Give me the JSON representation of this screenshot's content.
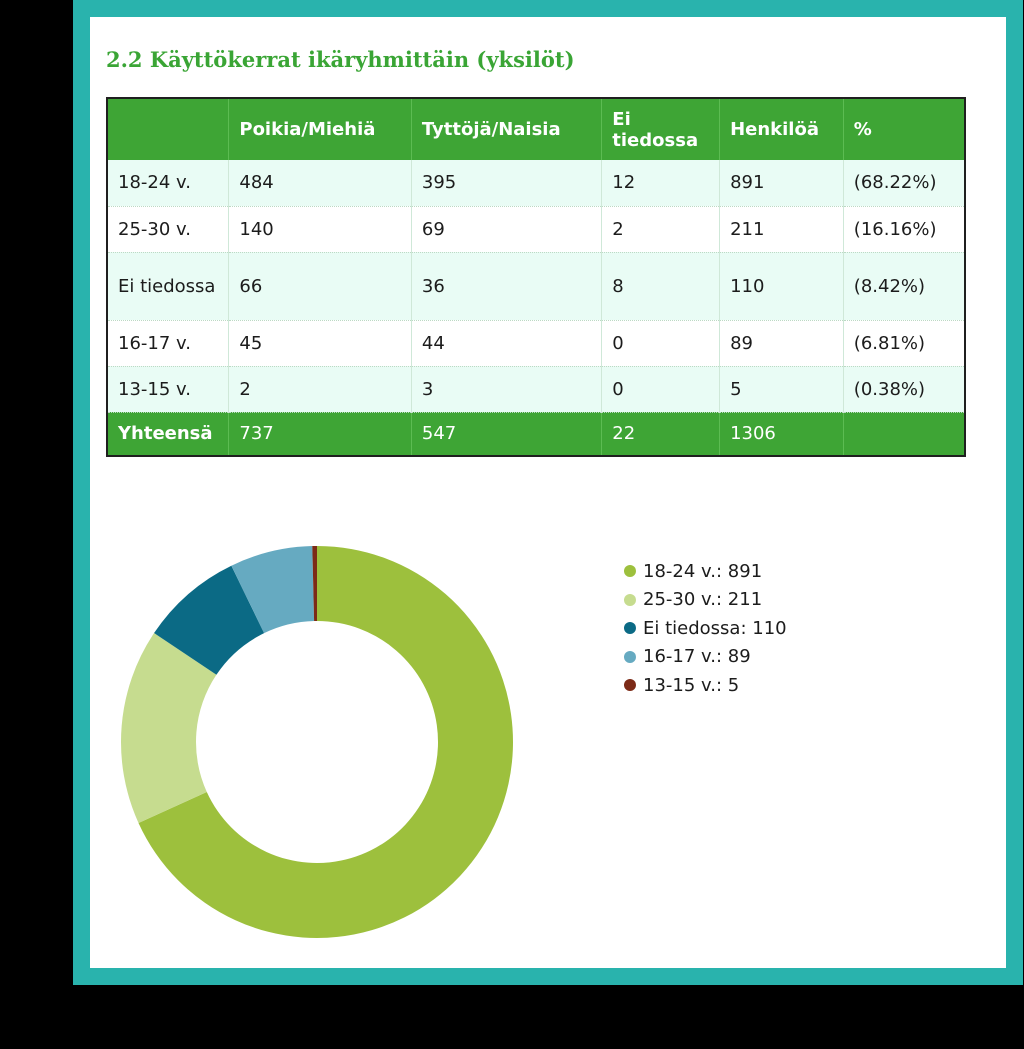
{
  "title": "2.2 Käyttökerrat ikäryhmittäin (yksilöt)",
  "table": {
    "headers": [
      "",
      "Poikia/Miehiä",
      "Tyttöjä/Naisia",
      "Ei tiedossa",
      "Henkilöä",
      "%"
    ],
    "rows": [
      [
        "18-24 v.",
        "484",
        "395",
        "12",
        "891",
        "(68.22%)"
      ],
      [
        "25-30 v.",
        "140",
        "69",
        "2",
        "211",
        "(16.16%)"
      ],
      [
        "Ei tiedossa",
        "66",
        "36",
        "8",
        "110",
        "(8.42%)"
      ],
      [
        "16-17 v.",
        "45",
        "44",
        "0",
        "89",
        "(6.81%)"
      ],
      [
        "13-15 v.",
        "2",
        "3",
        "0",
        "5",
        "(0.38%)"
      ]
    ],
    "total": [
      "Yhteensä",
      "737",
      "547",
      "22",
      "1306",
      ""
    ]
  },
  "legend": [
    "18-24 v.: 891",
    "25-30 v.: 211",
    "Ei tiedossa: 110",
    "16-17 v.: 89",
    "13-15 v.: 5"
  ],
  "chart_data": {
    "type": "pie",
    "style": "donut",
    "categories": [
      "18-24 v.",
      "25-30 v.",
      "Ei tiedossa",
      "16-17 v.",
      "13-15 v."
    ],
    "values": [
      891,
      211,
      110,
      89,
      5
    ],
    "colors": [
      "#9dc03d",
      "#c6dc8f",
      "#0b6a85",
      "#66aac1",
      "#7c2a17"
    ],
    "legend_position": "right"
  }
}
